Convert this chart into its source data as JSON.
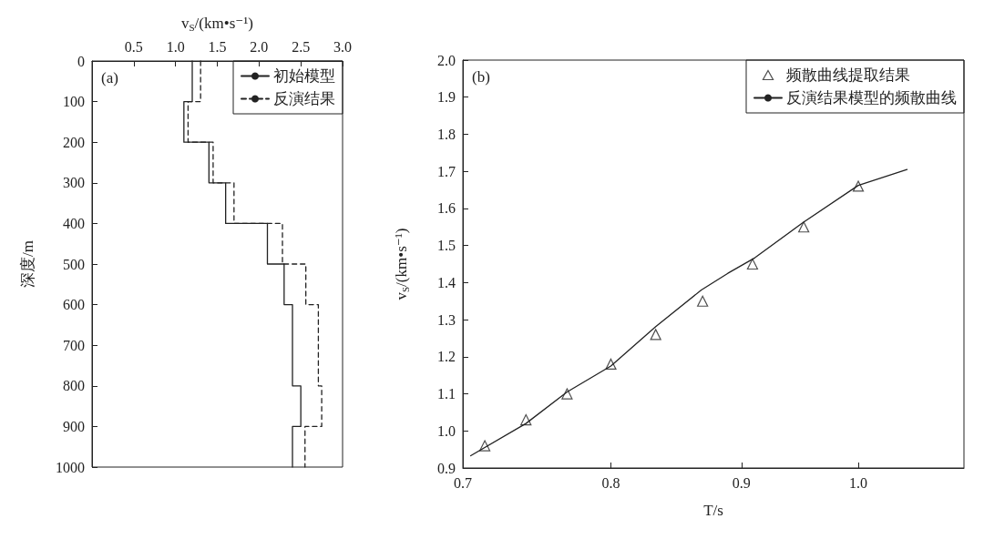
{
  "chart_data": [
    {
      "type": "line",
      "xlabel": "v$_{S}$/(km•s⁻¹)",
      "ylabel": "深度/m",
      "xlim": [
        0,
        3
      ],
      "xticks": [
        0.5,
        {
          "value": 1,
          "label": "1.0"
        },
        1.5,
        {
          "value": 2,
          "label": "2.0"
        },
        2.5,
        {
          "value": 3,
          "label": "3.0"
        }
      ],
      "ylim": [
        1000,
        0
      ],
      "yticks": [
        0,
        100,
        200,
        300,
        400,
        500,
        600,
        700,
        800,
        900,
        1000
      ],
      "grid": false,
      "legend": "top right",
      "marker": "none",
      "annotations": [
        "(a)"
      ],
      "series": [
        {
          "name": "初始模型",
          "color": "#222222",
          "line_style": "solid",
          "x": [
            1.2,
            1.2,
            1.1,
            1.1,
            1.4,
            1.4,
            1.6,
            1.6,
            2.1,
            2.1,
            2.3,
            2.3,
            2.4,
            2.4,
            2.5,
            2.5,
            2.4,
            2.4
          ],
          "values": [
            0,
            100,
            100,
            200,
            200,
            300,
            300,
            400,
            400,
            500,
            500,
            600,
            600,
            800,
            800,
            900,
            900,
            1000
          ]
        },
        {
          "name": "反演结果",
          "color": "#222222",
          "line_style": "dashed",
          "x": [
            1.3,
            1.3,
            1.15,
            1.15,
            1.45,
            1.45,
            1.7,
            1.7,
            2.28,
            2.28,
            2.56,
            2.56,
            2.71,
            2.71,
            2.75,
            2.75,
            2.55,
            2.55
          ],
          "values": [
            0,
            100,
            100,
            200,
            200,
            300,
            300,
            400,
            400,
            500,
            500,
            600,
            600,
            800,
            800,
            900,
            900,
            1000
          ]
        }
      ]
    },
    {
      "type": "scatter",
      "xlabel": "T/s",
      "ylabel": "v$_{S}$/(km•s⁻¹)",
      "log": "x",
      "xlim": [
        0.7,
        1.1
      ],
      "xticks": [
        0.7,
        0.8,
        0.9,
        {
          "value": 1,
          "label": "1.0"
        }
      ],
      "ylim": [
        0.9,
        2.0
      ],
      "yticks": [
        0.9,
        {
          "value": 1,
          "label": "1.0"
        },
        1.1,
        1.2,
        1.3,
        1.4,
        1.5,
        1.6,
        1.7,
        1.8,
        1.9,
        {
          "value": 2,
          "label": "2.0"
        }
      ],
      "grid": false,
      "legend": "top right",
      "annotations": [
        "(b)"
      ],
      "series": [
        {
          "name": "频散曲线提取结果",
          "color": "#222222",
          "marker": "triangle",
          "x": [
            0.714,
            0.741,
            0.769,
            0.8,
            0.833,
            0.869,
            0.909,
            0.952,
            1.0
          ],
          "values": [
            0.96,
            1.03,
            1.1,
            1.18,
            1.26,
            1.35,
            1.45,
            1.55,
            1.66
          ]
        },
        {
          "type": "line",
          "name": "反演结果模型的频散曲线",
          "color": "#222222",
          "marker": "none",
          "line_style": "solid",
          "x": [
            0.705,
            0.741,
            0.769,
            0.8,
            0.833,
            0.868,
            0.889,
            0.911,
            0.951,
            1.0,
            1.045
          ],
          "values": [
            0.933,
            1.02,
            1.105,
            1.175,
            1.281,
            1.38,
            1.425,
            1.467,
            1.561,
            1.662,
            1.705
          ]
        }
      ]
    }
  ]
}
